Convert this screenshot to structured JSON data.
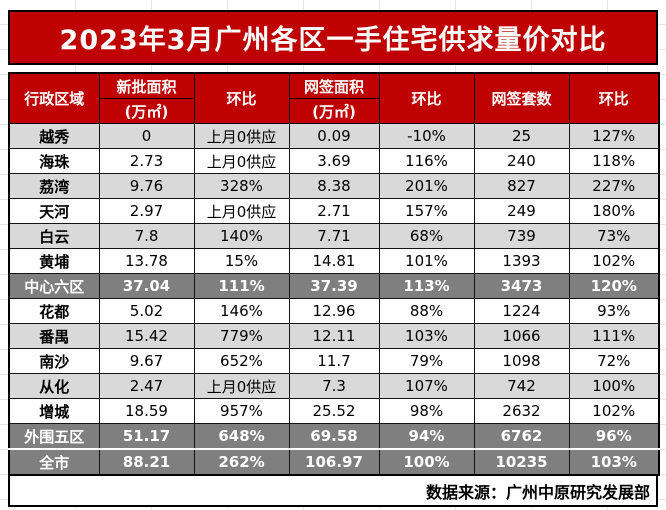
{
  "colors": {
    "header_red": "#C00101",
    "row_light_gray": "#D9D9D9",
    "row_dark_gray": "#7F7F7F",
    "border_black": "#000000",
    "text_white": "#FFFFFF"
  },
  "chart_data": {
    "type": "table",
    "title": "2023年3月广州各区一手住宅供求量价对比",
    "header": {
      "region": "行政区域",
      "new_area": "新批面积",
      "new_area_unit": "(万㎡)",
      "mom": "环比",
      "signed_area": "网签面积",
      "signed_area_unit": "(万㎡)",
      "signed_units": "网签套数"
    },
    "columns": [
      "行政区域",
      "新批面积(万㎡)",
      "环比",
      "网签面积(万㎡)",
      "环比",
      "网签套数",
      "环比"
    ],
    "rows": [
      {
        "shade": "light",
        "cells": [
          "越秀",
          "0",
          "上月0供应",
          "0.09",
          "-10%",
          "25",
          "127%"
        ]
      },
      {
        "shade": "white",
        "cells": [
          "海珠",
          "2.73",
          "上月0供应",
          "3.69",
          "116%",
          "240",
          "118%"
        ]
      },
      {
        "shade": "light",
        "cells": [
          "荔湾",
          "9.76",
          "328%",
          "8.38",
          "201%",
          "827",
          "227%"
        ]
      },
      {
        "shade": "white",
        "cells": [
          "天河",
          "2.97",
          "上月0供应",
          "2.71",
          "157%",
          "249",
          "180%"
        ]
      },
      {
        "shade": "light",
        "cells": [
          "白云",
          "7.8",
          "140%",
          "7.71",
          "68%",
          "739",
          "73%"
        ]
      },
      {
        "shade": "white",
        "cells": [
          "黄埔",
          "13.78",
          "15%",
          "14.81",
          "101%",
          "1393",
          "102%"
        ]
      },
      {
        "shade": "dark",
        "cells": [
          "中心六区",
          "37.04",
          "111%",
          "37.39",
          "113%",
          "3473",
          "120%"
        ]
      },
      {
        "shade": "white",
        "cells": [
          "花都",
          "5.02",
          "146%",
          "12.96",
          "88%",
          "1224",
          "93%"
        ]
      },
      {
        "shade": "light",
        "cells": [
          "番禺",
          "15.42",
          "779%",
          "12.11",
          "103%",
          "1066",
          "111%"
        ]
      },
      {
        "shade": "white",
        "cells": [
          "南沙",
          "9.67",
          "652%",
          "11.7",
          "79%",
          "1098",
          "72%"
        ]
      },
      {
        "shade": "light",
        "cells": [
          "从化",
          "2.47",
          "上月0供应",
          "7.3",
          "107%",
          "742",
          "100%"
        ]
      },
      {
        "shade": "white",
        "cells": [
          "增城",
          "18.59",
          "957%",
          "25.52",
          "98%",
          "2632",
          "102%"
        ]
      },
      {
        "shade": "dark",
        "cells": [
          "外围五区",
          "51.17",
          "648%",
          "69.58",
          "94%",
          "6762",
          "96%"
        ]
      },
      {
        "shade": "dark",
        "cells": [
          "全市",
          "88.21",
          "262%",
          "106.97",
          "100%",
          "10235",
          "103%"
        ]
      }
    ],
    "source": "数据来源：广州中原研究发展部",
    "layout_hints": {
      "summary_rows": [
        "中心六区",
        "外围五区",
        "全市"
      ],
      "grid": "on",
      "header_rows": 2
    }
  }
}
